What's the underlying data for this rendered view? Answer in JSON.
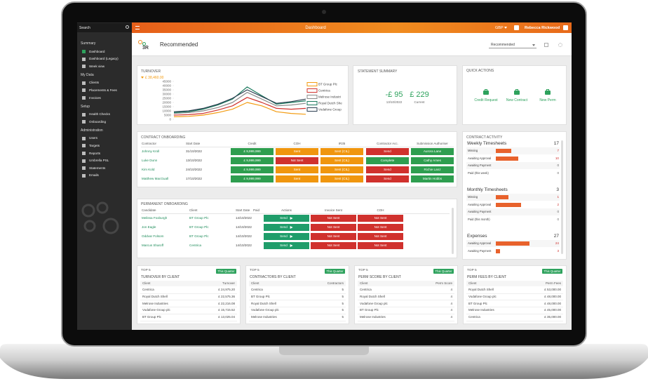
{
  "sidebar": {
    "search": "Search",
    "groups": [
      {
        "title": "Summary",
        "items": [
          "Dashboard",
          "Dashboard (Legacy)",
          "Week view"
        ]
      },
      {
        "title": "My Data",
        "items": [
          "Clients",
          "Placements & Fees",
          "Invoices"
        ]
      },
      {
        "title": "Setup",
        "items": [
          "Health Checks",
          "Onboarding"
        ]
      },
      {
        "title": "Administration",
        "items": [
          "Users",
          "Targets",
          "Reports",
          "Umbrella PSL",
          "Statements",
          "Emails"
        ]
      }
    ]
  },
  "topbar": {
    "title": "Dashboard",
    "currency": "GBP",
    "user": "Rebecca Rickwood"
  },
  "header": {
    "logo": "3R",
    "title": "Recommended",
    "select": "Recommended"
  },
  "turnover": {
    "title": "TURNOVER",
    "chart_data": {
      "type": "line",
      "highlight": "£ 38,460.00",
      "highlight_color": "#f39c12",
      "ylim": [
        0,
        45000
      ],
      "yticks": [
        45000,
        40000,
        35000,
        30000,
        25000,
        20000,
        15000,
        10000,
        5000,
        0
      ],
      "series": [
        {
          "name": "BT Group Plc",
          "color": "#f39c12",
          "values": [
            3000,
            3500,
            5000,
            8000,
            12000,
            20000,
            16000,
            9000,
            7000,
            6000
          ]
        },
        {
          "name": "Centrica",
          "color": "#d0312d",
          "values": [
            5000,
            5500,
            7000,
            11000,
            16000,
            26000,
            20000,
            13000,
            12000,
            13000
          ]
        },
        {
          "name": "Melrose Industri",
          "color": "#8a8a8a",
          "values": [
            7000,
            8000,
            10000,
            14000,
            20000,
            32000,
            24000,
            16000,
            17000,
            19000
          ]
        },
        {
          "name": "Royal Dutch She",
          "color": "#1a7a5e",
          "values": [
            8000,
            9000,
            12000,
            17000,
            24000,
            38460,
            28000,
            18000,
            20000,
            22000
          ]
        },
        {
          "name": "Vodafone Group",
          "color": "#2c3e50",
          "values": [
            9000,
            10000,
            13000,
            18000,
            25000,
            35000,
            27000,
            19000,
            21000,
            24000
          ]
        }
      ]
    }
  },
  "statement": {
    "title": "STATEMENT SUMMARY",
    "items": [
      {
        "value": "-£ 95",
        "label": "13/10/2022"
      },
      {
        "value": "£ 229",
        "label": "Current"
      }
    ]
  },
  "quick_actions": {
    "title": "QUICK ACTIONS",
    "items": [
      "Credit Request",
      "New Contract",
      "New Perm"
    ]
  },
  "contract_onboarding": {
    "title": "CONTRACT ONBOARDING",
    "columns": [
      "Contractor",
      "Start Date",
      "Credit",
      "COH",
      "IR35",
      "Contractor Acc.",
      "Submission Authoriser"
    ],
    "rows": [
      {
        "name": "Johnny Kroll",
        "start": "31/10/2022",
        "cells": [
          {
            "text": "£ 9,999,999",
            "color": "#2e9e4f"
          },
          {
            "text": "Sent",
            "color": "#f0960e"
          },
          {
            "text": "Sent (CIL)",
            "color": "#f0960e"
          },
          {
            "text": "Send",
            "color": "#d0312d"
          },
          {
            "text": "Aurora Lane",
            "color": "#2e9e4f"
          }
        ]
      },
      {
        "name": "Luke Dunn",
        "start": "13/10/2022",
        "cells": [
          {
            "text": "£ 9,999,999",
            "color": "#2e9e4f"
          },
          {
            "text": "Not Sent",
            "color": "#d0312d"
          },
          {
            "text": "Sent (CIL)",
            "color": "#f0960e"
          },
          {
            "text": "Complete",
            "color": "#2e9e4f"
          },
          {
            "text": "Cathy Ames",
            "color": "#2e9e4f"
          }
        ]
      },
      {
        "name": "Kim Kold",
        "start": "24/10/2022",
        "cells": [
          {
            "text": "£ 9,999,999",
            "color": "#2e9e4f"
          },
          {
            "text": "Sent",
            "color": "#f0960e"
          },
          {
            "text": "Sent (CIL)",
            "color": "#f0960e"
          },
          {
            "text": "Send",
            "color": "#d0312d"
          },
          {
            "text": "Richie Lanz",
            "color": "#2e9e4f"
          }
        ]
      },
      {
        "name": "Matthew MacGuall",
        "start": "17/10/2022",
        "cells": [
          {
            "text": "£ 9,999,999",
            "color": "#2e9e4f"
          },
          {
            "text": "Sent",
            "color": "#f0960e"
          },
          {
            "text": "Sent (CIL)",
            "color": "#f0960e"
          },
          {
            "text": "Send",
            "color": "#d0312d"
          },
          {
            "text": "Martin Hobbs",
            "color": "#2e9e4f"
          }
        ]
      }
    ]
  },
  "permanent_onboarding": {
    "title": "PERMANENT ONBOARDING",
    "columns": [
      "Candidate",
      "Client",
      "Start Date",
      "Paid",
      "Actions",
      "Invoice Sent",
      "COH"
    ],
    "rows": [
      {
        "name": "Melissa Foxburgh",
        "client": "BT Group Plc",
        "start": "14/10/2022",
        "cells": [
          {
            "text": "Send",
            "color": "#1f9d6a"
          },
          {
            "text": "Not Sent",
            "color": "#d0312d"
          },
          {
            "text": "Not Sent",
            "color": "#d0312d"
          }
        ]
      },
      {
        "name": "Jon Eagle",
        "client": "BT Group Plc",
        "start": "14/10/2022",
        "cells": [
          {
            "text": "Send",
            "color": "#1f9d6a"
          },
          {
            "text": "Not Sent",
            "color": "#d0312d"
          },
          {
            "text": "Not Sent",
            "color": "#d0312d"
          }
        ]
      },
      {
        "name": "Oddvar Folsom",
        "client": "BT Group Plc",
        "start": "14/10/2022",
        "cells": [
          {
            "text": "Send",
            "color": "#1f9d6a"
          },
          {
            "text": "Not Sent",
            "color": "#d0312d"
          },
          {
            "text": "Not Sent",
            "color": "#d0312d"
          }
        ]
      },
      {
        "name": "Marcus Sharoff",
        "client": "Centrica",
        "start": "14/10/2022",
        "cells": [
          {
            "text": "Send",
            "color": "#1f9d6a"
          },
          {
            "text": "Not Sent",
            "color": "#d0312d"
          },
          {
            "text": "Not Sent",
            "color": "#d0312d"
          }
        ]
      }
    ]
  },
  "contract_activity": {
    "title": "CONTRACT ACTIVITY",
    "bar_color": "#e8622c",
    "sections": [
      {
        "title": "Weekly Timesheets",
        "total": 17,
        "rows": [
          {
            "label": "Missing",
            "value": 7
          },
          {
            "label": "Awaiting Approval",
            "value": 10
          },
          {
            "label": "Awaiting Payment",
            "value": 0
          },
          {
            "label": "Paid (this week)",
            "value": 0
          }
        ]
      },
      {
        "title": "Monthly Timesheets",
        "total": 3,
        "rows": [
          {
            "label": "Missing",
            "value": 1
          },
          {
            "label": "Awaiting Approval",
            "value": 2
          },
          {
            "label": "Awaiting Payment",
            "value": 0
          },
          {
            "label": "Paid (this month)",
            "value": 0
          }
        ]
      },
      {
        "title": "Expenses",
        "total": 27,
        "rows": [
          {
            "label": "Awaiting Approval",
            "value": 24
          },
          {
            "label": "Awaiting Payment",
            "value": 3
          }
        ]
      }
    ]
  },
  "top5": [
    {
      "top": "TOP 5",
      "title": "TURNOVER BY CLIENT",
      "badge": "This Quarter",
      "columns": [
        "Client",
        "Turnover"
      ],
      "rows": [
        [
          "Centrica",
          "£ 24,975.20"
        ],
        [
          "Royal Dutch Shell",
          "£ 22,575.36"
        ],
        [
          "Melrose Industries",
          "£ 22,216.08"
        ],
        [
          "Vodafone Group plc",
          "£ 15,715.52"
        ],
        [
          "BT Group Plc",
          "£ 13,025.04"
        ]
      ]
    },
    {
      "top": "TOP 5",
      "title": "CONTRACTORS BY CLIENT",
      "badge": "This Quarter",
      "columns": [
        "Client",
        "Contractors"
      ],
      "rows": [
        [
          "Centrica",
          5
        ],
        [
          "BT Group Plc",
          5
        ],
        [
          "Royal Dutch Shell",
          5
        ],
        [
          "Vodafone Group plc",
          5
        ],
        [
          "Melrose Industries",
          5
        ]
      ]
    },
    {
      "top": "TOP 5",
      "title": "PERM SCORE BY CLIENT",
      "badge": "This Quarter",
      "columns": [
        "Client",
        "Perm Score"
      ],
      "rows": [
        [
          "Centrica",
          4
        ],
        [
          "Royal Dutch Shell",
          4
        ],
        [
          "Vodafone Group plc",
          4
        ],
        [
          "BT Group Plc",
          4
        ],
        [
          "Melrose Industries",
          4
        ]
      ]
    },
    {
      "top": "TOP 5",
      "title": "PERM FEES BY CLIENT",
      "badge": "This Quarter",
      "columns": [
        "Client",
        "Perm Fees"
      ],
      "rows": [
        [
          "Royal Dutch Shell",
          "£ 53,000.00"
        ],
        [
          "Vodafone Group plc",
          "£ 48,000.00"
        ],
        [
          "BT Group Plc",
          "£ 48,000.00"
        ],
        [
          "Melrose Industries",
          "£ 45,000.00"
        ],
        [
          "Centrica",
          "£ 35,000.00"
        ]
      ]
    }
  ]
}
